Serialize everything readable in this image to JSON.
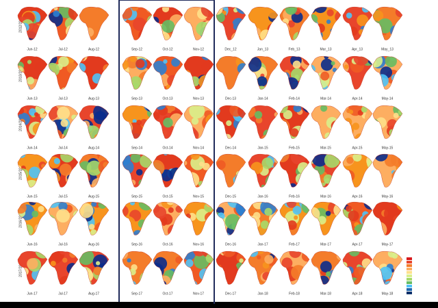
{
  "row_labels": [
    "2012/2013",
    "2013/2014",
    "2014/2015",
    "2015/2016",
    "2016/2017",
    "2017/2018"
  ],
  "rows": [
    [
      "Jun-12",
      "Jul-12",
      "Aug-12",
      "Sep-12",
      "Oct-12",
      "Nov-12",
      "Dec_12",
      "Jan_13",
      "Feb_13",
      "Mar_13",
      "Apr_13",
      "May_13"
    ],
    [
      "Jun-13",
      "Jul-13",
      "Aug-13",
      "Sep-13",
      "Oct-13",
      "Nov-13",
      "Dec-13",
      "Jan-14",
      "Feb-14",
      "Mar-14",
      "Apr-14",
      "May-14"
    ],
    [
      "Jun-14",
      "Jul-14",
      "Aug-14",
      "Sep-14",
      "Oct-14",
      "Nov-14",
      "Dec-14",
      "Jan-15",
      "Feb-15",
      "Mar-15",
      "Apr-15",
      "May-15"
    ],
    [
      "Jun-15",
      "Jul-15",
      "Aug-15",
      "Sep-15",
      "Oct-15",
      "Nov-15",
      "Dec-15",
      "Jan-16",
      "Feb-16",
      "Mar-16",
      "Apr-16",
      "May-16"
    ],
    [
      "Jun-16",
      "Jul-16",
      "Aug-16",
      "Sep-16",
      "Oct-16",
      "Nov-16",
      "Dec-16",
      "Jan-17",
      "Feb-17",
      "Mar-17",
      "Apr-17",
      "May-17"
    ],
    [
      "Jun-17",
      "Jul-17",
      "Aug-17",
      "Sep-17",
      "Oct-17",
      "Nov-17",
      "Dec-17",
      "Jan-18",
      "Feb-18",
      "Mar-18",
      "Apr-18",
      "May-18"
    ]
  ]
}
